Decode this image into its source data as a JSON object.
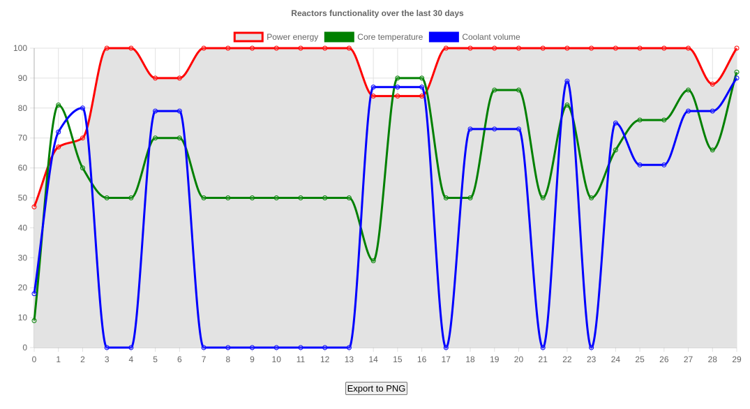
{
  "chart_data": {
    "type": "line",
    "title": "Reactors functionality over the last 30 days",
    "x": [
      0,
      1,
      2,
      3,
      4,
      5,
      6,
      7,
      8,
      9,
      10,
      11,
      12,
      13,
      14,
      15,
      16,
      17,
      18,
      19,
      20,
      21,
      22,
      23,
      24,
      25,
      26,
      27,
      28,
      29
    ],
    "ylim": [
      0,
      100
    ],
    "yticks": [
      0,
      10,
      20,
      30,
      40,
      50,
      60,
      70,
      80,
      90,
      100
    ],
    "grid": true,
    "legend_position": "top",
    "series": [
      {
        "name": "Power energy",
        "color": "#ff0000",
        "fill": "#e3e3e3",
        "values": [
          47,
          67,
          70,
          100,
          100,
          90,
          90,
          100,
          100,
          100,
          100,
          100,
          100,
          100,
          84,
          84,
          84,
          100,
          100,
          100,
          100,
          100,
          100,
          100,
          100,
          100,
          100,
          100,
          88,
          100
        ]
      },
      {
        "name": "Core temperature",
        "color": "#008000",
        "fill": "#008000",
        "values": [
          9,
          81,
          60,
          50,
          50,
          70,
          70,
          50,
          50,
          50,
          50,
          50,
          50,
          50,
          29,
          90,
          90,
          50,
          50,
          86,
          86,
          50,
          81,
          50,
          66,
          76,
          76,
          86,
          66,
          92
        ]
      },
      {
        "name": "Coolant volume",
        "color": "#0000ff",
        "fill": "#0000ff",
        "values": [
          18,
          72,
          80,
          0,
          0,
          79,
          79,
          0,
          0,
          0,
          0,
          0,
          0,
          0,
          87,
          87,
          87,
          0,
          73,
          73,
          73,
          0,
          89,
          0,
          75,
          61,
          61,
          79,
          79,
          90
        ]
      }
    ]
  },
  "export_button": {
    "label": "Export to PNG"
  }
}
